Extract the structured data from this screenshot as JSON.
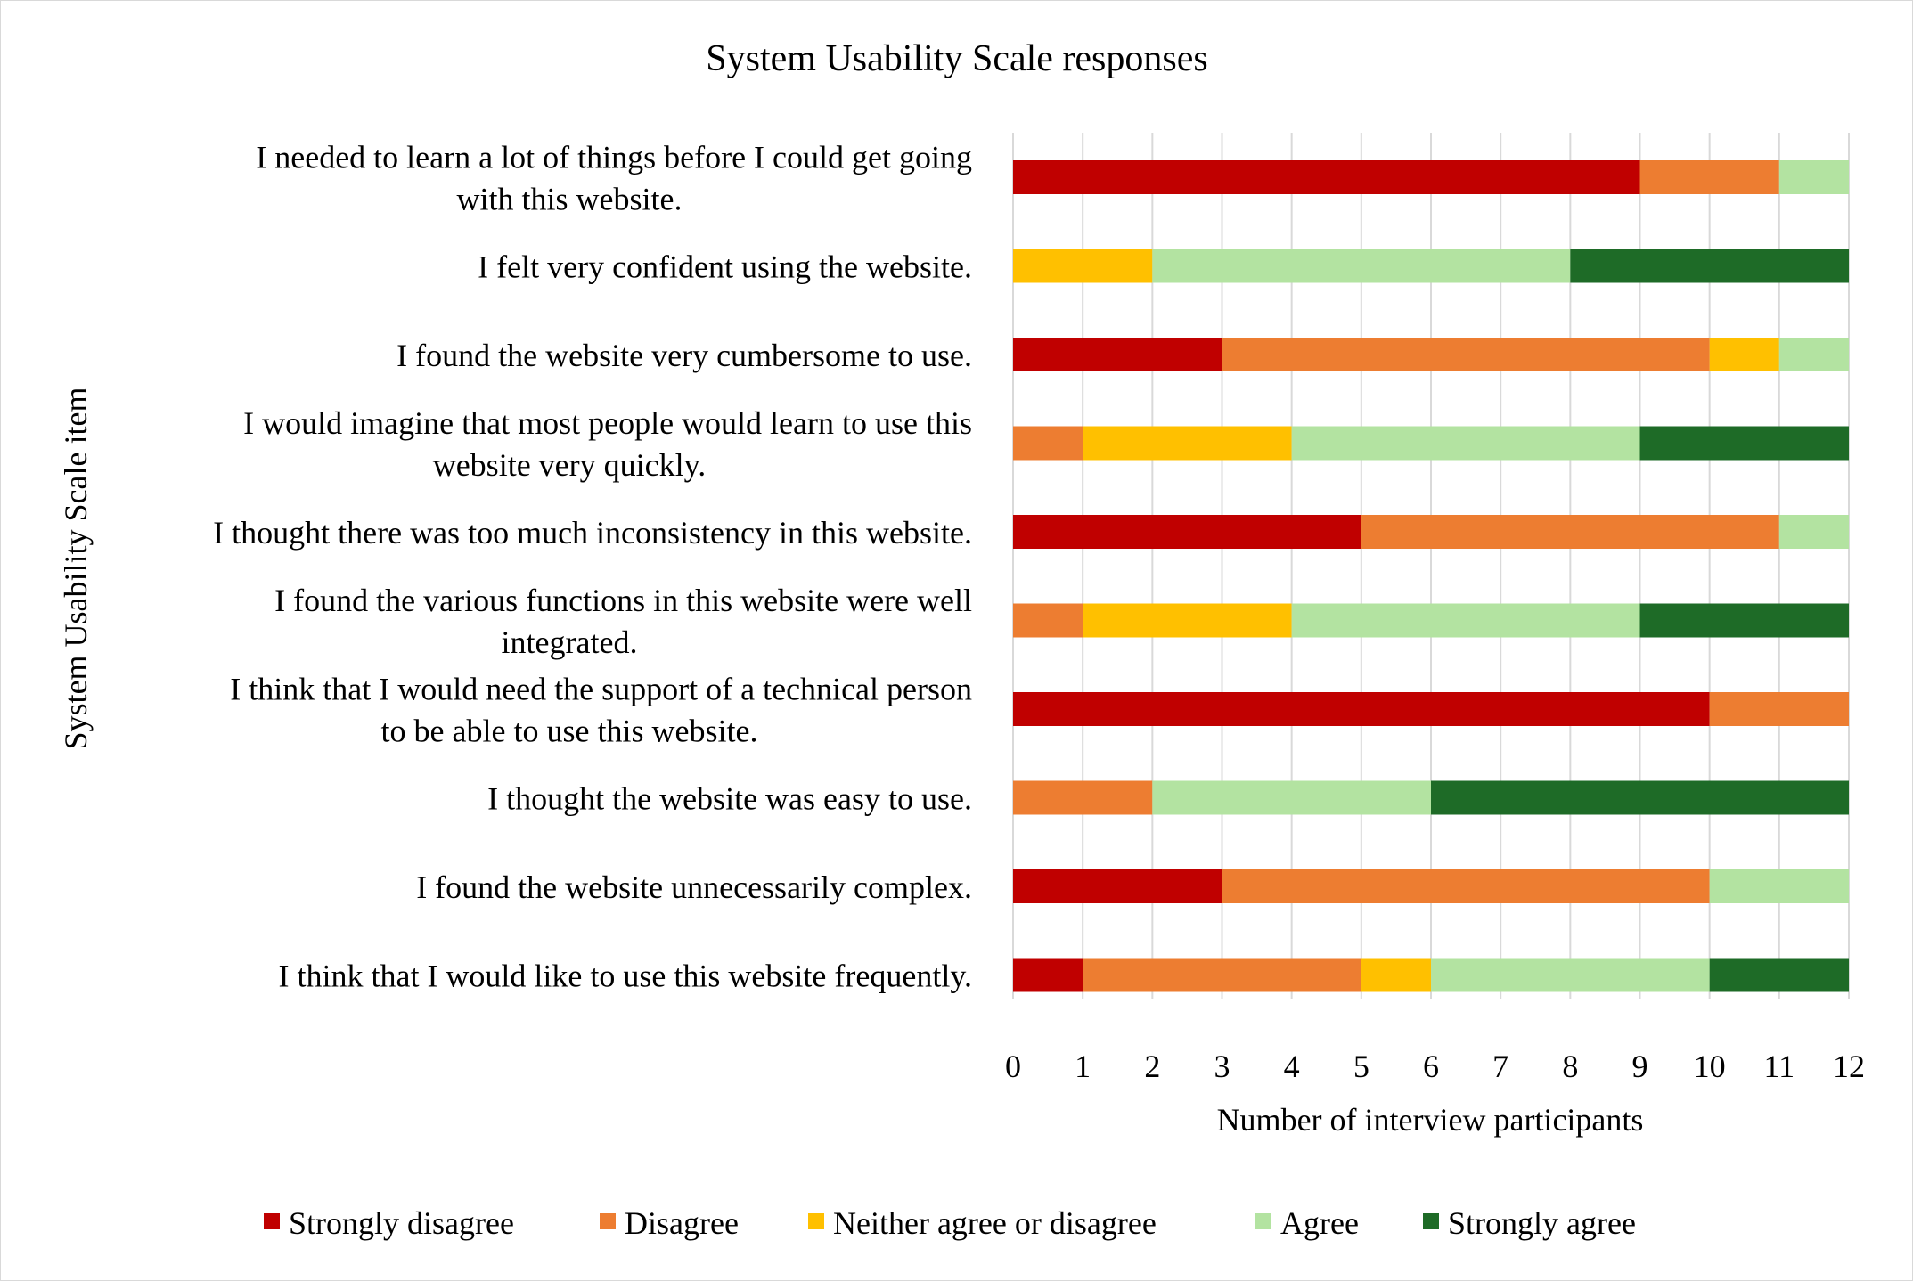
{
  "chart_data": {
    "type": "bar",
    "orientation": "horizontal",
    "stacked": true,
    "title": "System Usability Scale responses",
    "xlabel": "Number of interview participants",
    "ylabel": "System Usability Scale item",
    "xlim": [
      0,
      12
    ],
    "xticks": [
      "0",
      "1",
      "2",
      "3",
      "4",
      "5",
      "6",
      "7",
      "8",
      "9",
      "10",
      "11",
      "12"
    ],
    "grid": true,
    "legend_position": "bottom",
    "categories": [
      [
        "I needed to learn a lot of things before I could get going",
        "with this website."
      ],
      [
        "I felt very confident using the website."
      ],
      [
        "I found the website very cumbersome to use."
      ],
      [
        "I would imagine that most people would learn to use this",
        "website very quickly."
      ],
      [
        "I thought there was too much inconsistency in this website."
      ],
      [
        "I found the various functions in this website were well",
        "integrated."
      ],
      [
        "I think that I would need the support of a technical person",
        "to be able to use this website."
      ],
      [
        "I thought the website was easy to use."
      ],
      [
        "I found the website unnecessarily complex."
      ],
      [
        "I think that I would like to use this website frequently."
      ]
    ],
    "series": [
      {
        "name": "Strongly disagree",
        "color": "#c00000",
        "values": [
          9,
          0,
          3,
          0,
          5,
          0,
          10,
          0,
          3,
          1
        ]
      },
      {
        "name": "Disagree",
        "color": "#ed7d31",
        "values": [
          2,
          0,
          7,
          1,
          6,
          1,
          2,
          2,
          7,
          4
        ]
      },
      {
        "name": "Neither agree or disagree",
        "color": "#ffc000",
        "values": [
          0,
          2,
          1,
          3,
          0,
          3,
          0,
          0,
          0,
          1
        ]
      },
      {
        "name": "Agree",
        "color": "#b3e3a1",
        "values": [
          1,
          6,
          1,
          5,
          1,
          5,
          0,
          4,
          2,
          4
        ]
      },
      {
        "name": "Strongly agree",
        "color": "#1e6b27",
        "values": [
          0,
          4,
          0,
          3,
          0,
          3,
          0,
          6,
          0,
          2
        ]
      }
    ]
  }
}
